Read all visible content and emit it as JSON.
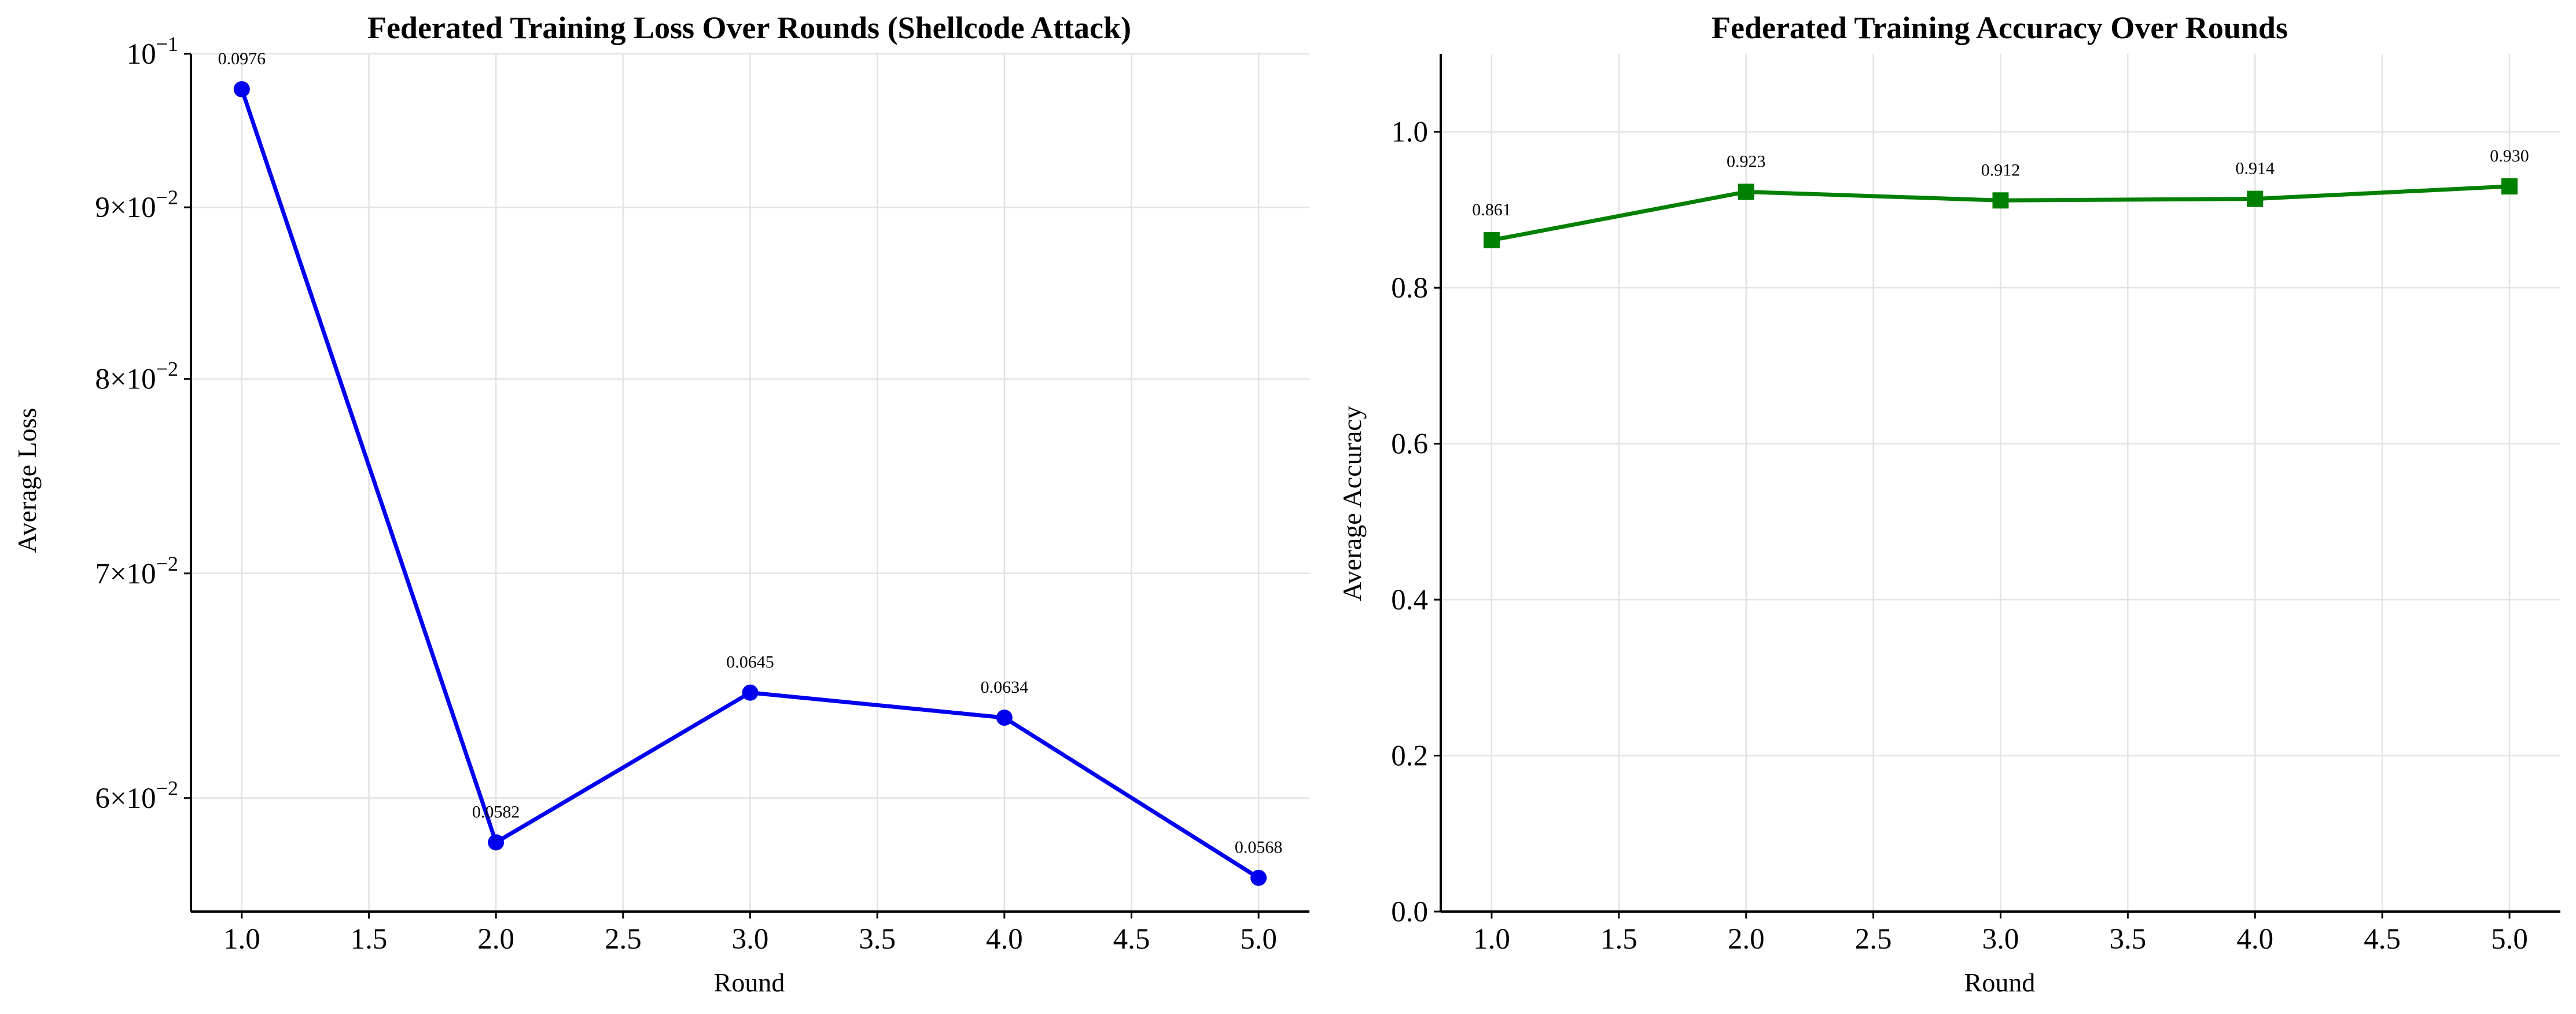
{
  "chart_data": [
    {
      "type": "line",
      "title": "Federated Training Loss Over Rounds (Shellcode Attack)",
      "xlabel": "Round",
      "ylabel": "Average Loss",
      "yscale": "log",
      "xlim": [
        0.8,
        5.2
      ],
      "ylim": [
        0.0555,
        0.1
      ],
      "grid": true,
      "color": "#0000ee",
      "marker": "circle",
      "x": [
        1,
        2,
        3,
        4,
        5
      ],
      "values": [
        0.0976,
        0.0582,
        0.0645,
        0.0634,
        0.0568
      ],
      "data_labels": [
        "0.0976",
        "0.0582",
        "0.0645",
        "0.0634",
        "0.0568"
      ],
      "x_ticks": [
        1.0,
        1.5,
        2.0,
        2.5,
        3.0,
        3.5,
        4.0,
        4.5,
        5.0
      ],
      "x_tick_labels": [
        "1.0",
        "1.5",
        "2.0",
        "2.5",
        "3.0",
        "3.5",
        "4.0",
        "4.5",
        "5.0"
      ],
      "y_ticks": [
        0.06,
        0.07,
        0.08,
        0.09,
        0.1
      ],
      "y_tick_mantissa": [
        "6",
        "7",
        "8",
        "9",
        ""
      ],
      "y_tick_exponent": [
        "−2",
        "−2",
        "−2",
        "−2",
        "−1"
      ]
    },
    {
      "type": "line",
      "title": "Federated Training Accuracy Over Rounds",
      "xlabel": "Round",
      "ylabel": "Average Accuracy",
      "xlim": [
        0.8,
        5.2
      ],
      "ylim": [
        0,
        1.1
      ],
      "grid": true,
      "color": "#008000",
      "marker": "square",
      "x": [
        1,
        2,
        3,
        4,
        5
      ],
      "values": [
        0.861,
        0.923,
        0.912,
        0.914,
        0.93
      ],
      "data_labels": [
        "0.861",
        "0.923",
        "0.912",
        "0.914",
        "0.930"
      ],
      "x_ticks": [
        1.0,
        1.5,
        2.0,
        2.5,
        3.0,
        3.5,
        4.0,
        4.5,
        5.0
      ],
      "x_tick_labels": [
        "1.0",
        "1.5",
        "2.0",
        "2.5",
        "3.0",
        "3.5",
        "4.0",
        "4.5",
        "5.0"
      ],
      "y_ticks": [
        0,
        0.2,
        0.4,
        0.6,
        0.8,
        1.0
      ],
      "y_tick_labels": [
        "0.0",
        "0.2",
        "0.4",
        "0.6",
        "0.8",
        "1.0"
      ]
    }
  ]
}
